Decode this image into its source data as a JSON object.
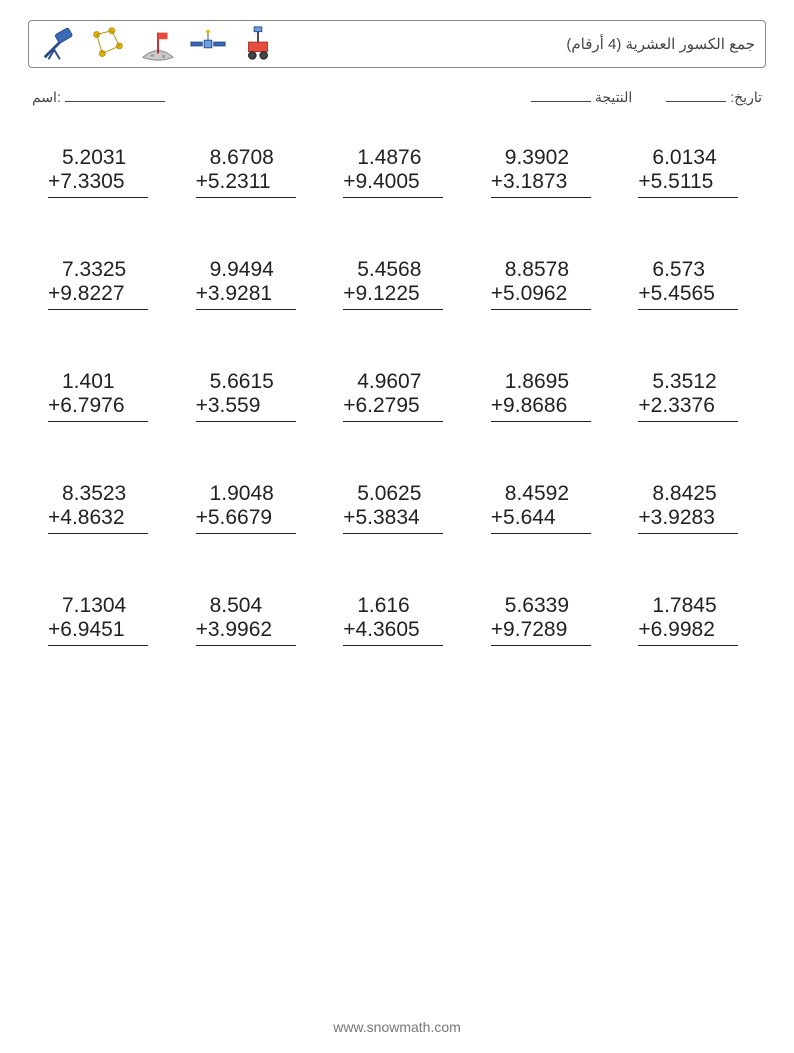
{
  "title": "(جمع الكسور العشرية (4 أرقام",
  "labels": {
    "name": "اسم:",
    "score": "النتيجة",
    "date": ":تاريخ"
  },
  "problems": [
    {
      "a": "5.2031",
      "b": "7.3305"
    },
    {
      "a": "8.6708",
      "b": "5.2311"
    },
    {
      "a": "1.4876",
      "b": "9.4005"
    },
    {
      "a": "9.3902",
      "b": "3.1873"
    },
    {
      "a": "6.0134",
      "b": "5.5115"
    },
    {
      "a": "7.3325",
      "b": "9.8227"
    },
    {
      "a": "9.9494",
      "b": "3.9281"
    },
    {
      "a": "5.4568",
      "b": "9.1225"
    },
    {
      "a": "8.8578",
      "b": "5.0962"
    },
    {
      "a": "6.573",
      "b": "5.4565"
    },
    {
      "a": "1.401",
      "b": "6.7976"
    },
    {
      "a": "5.6615",
      "b": "3.559"
    },
    {
      "a": "4.9607",
      "b": "6.2795"
    },
    {
      "a": "1.8695",
      "b": "9.8686"
    },
    {
      "a": "5.3512",
      "b": "2.3376"
    },
    {
      "a": "8.3523",
      "b": "4.8632"
    },
    {
      "a": "1.9048",
      "b": "5.6679"
    },
    {
      "a": "5.0625",
      "b": "5.3834"
    },
    {
      "a": "8.4592",
      "b": "5.644"
    },
    {
      "a": "8.8425",
      "b": "3.9283"
    },
    {
      "a": "7.1304",
      "b": "6.9451"
    },
    {
      "a": "8.504",
      "b": "3.9962"
    },
    {
      "a": "1.616",
      "b": "4.3605"
    },
    {
      "a": "5.6339",
      "b": "9.7289"
    },
    {
      "a": "1.7845",
      "b": "6.9982"
    }
  ],
  "footer": "www.snowmath.com",
  "style": {
    "page_bg": "#ffffff",
    "border_color": "#888888",
    "text_color": "#222222",
    "muted_text": "#444444",
    "footer_color": "#777777",
    "font_size_problem": 21,
    "font_size_title": 15,
    "font_size_info": 14,
    "font_size_footer": 14,
    "grid_cols": 5,
    "grid_rows": 5,
    "row_gap": 60,
    "col_gap": 40
  },
  "icons": [
    {
      "name": "telescope-icon"
    },
    {
      "name": "constellation-icon"
    },
    {
      "name": "moon-flag-icon"
    },
    {
      "name": "satellite-icon"
    },
    {
      "name": "rover-icon"
    }
  ]
}
